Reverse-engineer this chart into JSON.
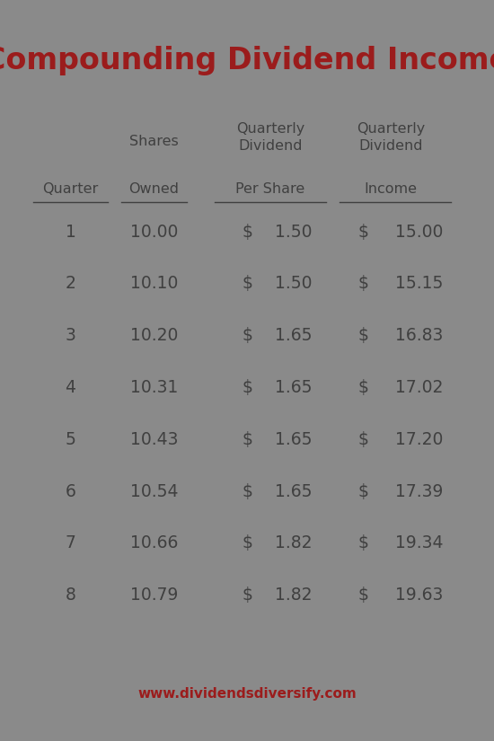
{
  "title": "Compounding Dividend Income",
  "title_color": "#9B1C1C",
  "background_color": "#FFFFFF",
  "outer_bg_color": "#8A8A8A",
  "border_color": "#8A8A8A",
  "text_color": "#404040",
  "website": "www.dividendsdiversify.com",
  "website_color": "#9B1C1C",
  "rows": [
    [
      1,
      "10.00",
      "1.50",
      "15.00"
    ],
    [
      2,
      "10.10",
      "1.50",
      "15.15"
    ],
    [
      3,
      "10.20",
      "1.65",
      "16.83"
    ],
    [
      4,
      "10.31",
      "1.65",
      "17.02"
    ],
    [
      5,
      "10.43",
      "1.65",
      "17.20"
    ],
    [
      6,
      "10.54",
      "1.65",
      "17.39"
    ],
    [
      7,
      "10.66",
      "1.82",
      "19.34"
    ],
    [
      8,
      "10.79",
      "1.82",
      "19.63"
    ]
  ],
  "fig_width": 5.5,
  "fig_height": 8.25,
  "title_fontsize": 24,
  "header_fontsize": 11.5,
  "data_fontsize": 13.5
}
